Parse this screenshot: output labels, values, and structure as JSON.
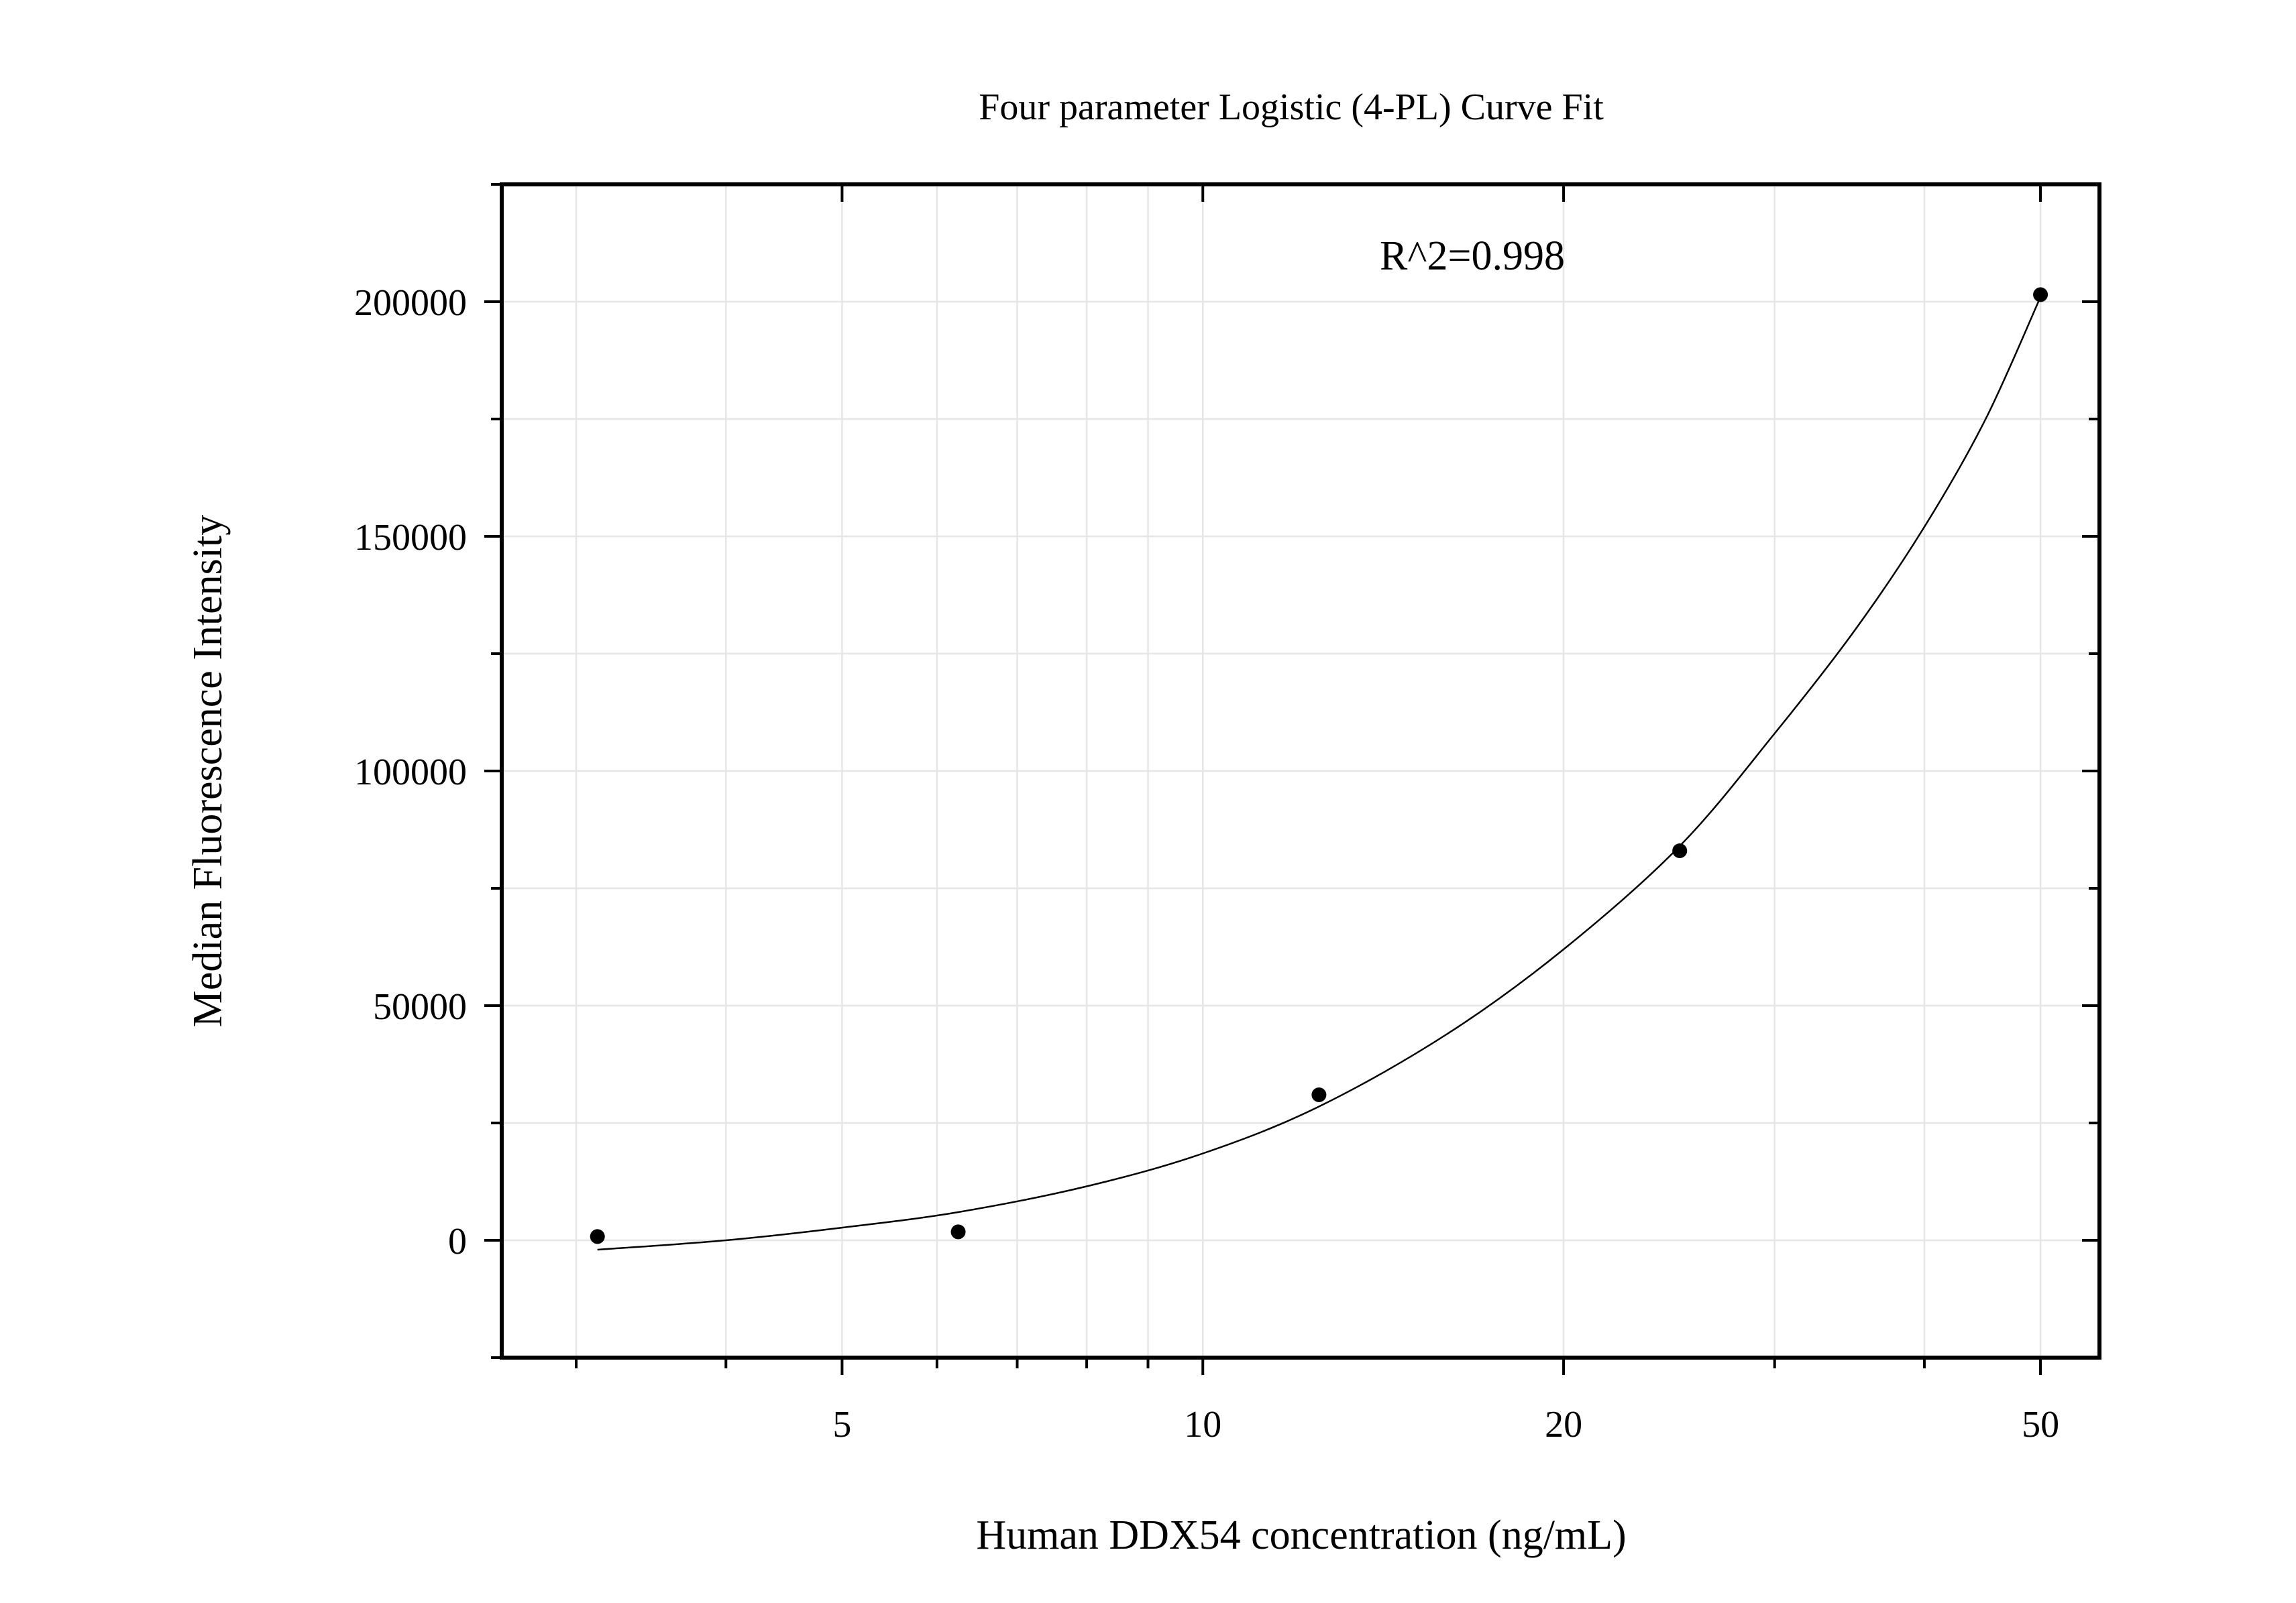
{
  "chart_data": {
    "type": "scatter",
    "title": "Four parameter Logistic (4-PL) Curve Fit",
    "xlabel": "Human DDX54 concentration (ng/mL)",
    "ylabel": "Median Fluorescence Intensity",
    "x_scale": "log",
    "xlim": [
      2.6,
      56
    ],
    "ylim": [
      -25000,
      225000
    ],
    "x_ticks": [
      5,
      10,
      20,
      50
    ],
    "x_tick_labels": [
      "5",
      "10",
      "20",
      "50"
    ],
    "x_minor_ticks": [
      3,
      4,
      6,
      7,
      8,
      9,
      30,
      40
    ],
    "y_ticks": [
      0,
      50000,
      100000,
      150000,
      200000
    ],
    "y_tick_labels": [
      "0",
      "50000",
      "100000",
      "150000",
      "200000"
    ],
    "y_minor_ticks": [
      -25000,
      25000,
      75000,
      125000,
      175000,
      225000
    ],
    "grid": true,
    "annotation": "R^2=0.998",
    "points": [
      {
        "x": 3.125,
        "y": 800
      },
      {
        "x": 6.25,
        "y": 1800
      },
      {
        "x": 12.5,
        "y": 31000
      },
      {
        "x": 25,
        "y": 83000
      },
      {
        "x": 50,
        "y": 201500
      }
    ],
    "fit_curve": [
      {
        "x": 3.125,
        "y": -2000
      },
      {
        "x": 4,
        "y": 0
      },
      {
        "x": 5,
        "y": 2700
      },
      {
        "x": 6.25,
        "y": 6000
      },
      {
        "x": 8,
        "y": 11500
      },
      {
        "x": 10,
        "y": 18500
      },
      {
        "x": 12.5,
        "y": 28500
      },
      {
        "x": 16,
        "y": 44000
      },
      {
        "x": 20,
        "y": 62000
      },
      {
        "x": 25,
        "y": 84000
      },
      {
        "x": 30,
        "y": 108000
      },
      {
        "x": 35,
        "y": 130000
      },
      {
        "x": 40,
        "y": 152000
      },
      {
        "x": 45,
        "y": 175000
      },
      {
        "x": 50,
        "y": 201000
      }
    ],
    "colors": {
      "point": "#000000",
      "curve": "#000000",
      "grid": "#e6e6e6",
      "axis": "#000000"
    }
  }
}
